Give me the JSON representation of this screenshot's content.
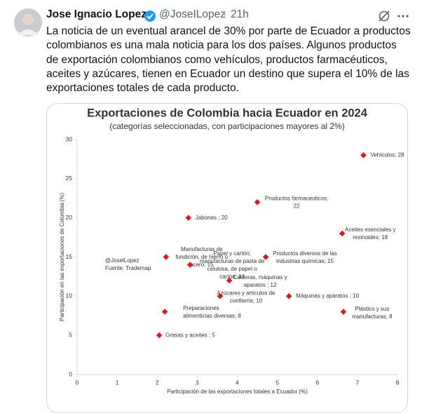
{
  "tweet": {
    "author_name": "Jose Ignacio Lopez",
    "handle": "@JoseILopez",
    "separator": "·",
    "time": "21h",
    "text_lines": [
      "La noticia de un eventual arancel de 30% por parte de Ecuador a productos",
      "colombianos es una mala noticia para los dos países. Algunos productos",
      "de exportación colombianos como vehículos, productos farmacéuticos,",
      "aceites y azúcares, tienen en Ecuador un destino que supera el 10% de las",
      "exportaciones totales de cada producto."
    ]
  },
  "chart_data": {
    "type": "scatter",
    "title": "Exportaciones de Colombia hacia Ecuador en 2024",
    "subtitle": "(categorías seleccionadas, con participaciones mayores al 2%)",
    "x_label": "Participación de las exportaciones totales a Ecuador (%)",
    "y_label": "Participación en las exportaciones de Colombia (%)",
    "annotations": [
      "@JoselLopez",
      "Fuente: Trademap"
    ],
    "xlim": [
      0,
      8
    ],
    "xticks": [
      0,
      1,
      2,
      3,
      4,
      5,
      6,
      7,
      8
    ],
    "ylim": [
      0,
      30
    ],
    "yticks": [
      0,
      5,
      10,
      15,
      20,
      25,
      30
    ],
    "series": [
      {
        "color": "#e0161c",
        "x": [
          7.15,
          4.5,
          2.78,
          6.62,
          2.22,
          2.82,
          4.71,
          3.8,
          3.57,
          5.29,
          6.65,
          2.19,
          2.05
        ],
        "values": [
          28,
          22,
          20,
          18,
          15,
          14,
          15,
          12,
          10,
          10,
          8,
          8,
          5
        ],
        "point_labels": [
          [
            "Vehículos; 28"
          ],
          [
            "Productos farmacéuticos;",
            "22"
          ],
          [
            "Jabones ; 20"
          ],
          [
            "Aceites esenciales y",
            "resinoides; 18"
          ],
          [
            "Manufacturas de",
            "fundición, de hierro o",
            "acero; 15"
          ],
          [
            "Papel y cartón;",
            "manufacturas de pasta de",
            "celulosa, de papel o",
            "cartón; 14"
          ],
          [
            "Productos diversos de las",
            "industrias químicas; 15"
          ],
          [
            "Calderas, máquinas y",
            "aparatos ; 12"
          ],
          [
            "Azúcares y artículos de",
            "confitería; 10"
          ],
          [
            "Máquinas y aparatos ; 10"
          ],
          [
            "Plástico y sus",
            "manufacturas; 8"
          ],
          [
            "Preparaciones",
            "alimenticias diversas; 8"
          ],
          [
            "Grasas y aceites ; 5"
          ]
        ]
      }
    ]
  }
}
